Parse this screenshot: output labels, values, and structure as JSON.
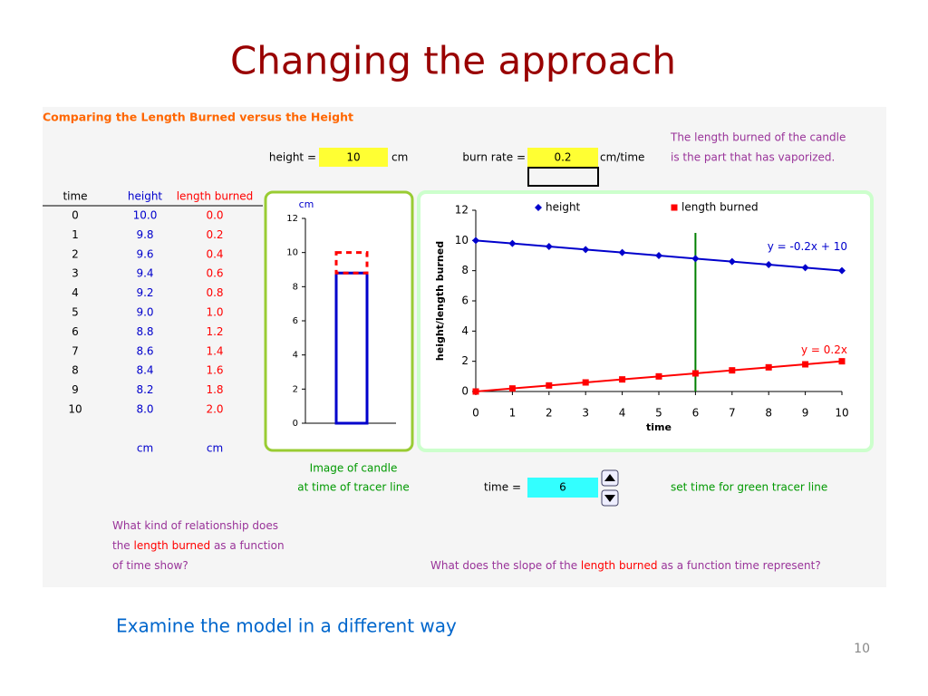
{
  "title": "Changing the approach",
  "sheet": {
    "heading": "Comparing the Length Burned versus the Height",
    "height_label": "height =",
    "height_value": 10,
    "height_unit": "cm",
    "burn_rate_label": "burn rate =",
    "burn_rate_value": 0.2,
    "burn_rate_unit": "cm/time",
    "note": [
      "The length burned of the candle",
      "is the part that has vaporized."
    ],
    "table": {
      "columns": [
        "time",
        "height",
        "length burned"
      ],
      "rows": [
        [
          0,
          "10.0",
          "0.0"
        ],
        [
          1,
          "9.8",
          "0.2"
        ],
        [
          2,
          "9.6",
          "0.4"
        ],
        [
          3,
          "9.4",
          "0.6"
        ],
        [
          4,
          "9.2",
          "0.8"
        ],
        [
          5,
          "9.0",
          "1.0"
        ],
        [
          6,
          "8.8",
          "1.2"
        ],
        [
          7,
          "8.6",
          "1.4"
        ],
        [
          8,
          "8.4",
          "1.6"
        ],
        [
          9,
          "8.2",
          "1.8"
        ],
        [
          10,
          "8.0",
          "2.0"
        ]
      ],
      "units": [
        "cm",
        "cm"
      ]
    },
    "candle_caption": [
      "Image of candle",
      "at time of tracer line"
    ],
    "time_label": "time =",
    "time_value": 6,
    "time_note": "set time for green tracer line",
    "question1": [
      [
        "What kind of relationship does"
      ],
      [
        "the ",
        "length burned",
        " as a function"
      ],
      [
        "of time show?"
      ]
    ],
    "question2": [
      [
        "What does the slope of the ",
        "length burned",
        " as a function time represent?"
      ]
    ]
  },
  "chart_data": [
    {
      "type": "bar",
      "y_label": "cm",
      "ylim": [
        0,
        12
      ],
      "yticks": [
        0,
        2,
        4,
        6,
        8,
        10,
        12
      ],
      "series": [
        {
          "color": "#0000cc",
          "values": [
            8.8
          ]
        },
        {
          "color": "#ff0000",
          "values": [
            1.2
          ]
        }
      ]
    },
    {
      "type": "line",
      "x_label": "time",
      "y_label": "height/length burned",
      "x": [
        0,
        1,
        2,
        3,
        4,
        5,
        6,
        7,
        8,
        9,
        10
      ],
      "xlim": [
        0,
        10
      ],
      "xticks": [
        0,
        1,
        2,
        3,
        4,
        5,
        6,
        7,
        8,
        9,
        10
      ],
      "ylim": [
        0,
        12
      ],
      "yticks": [
        0,
        2,
        4,
        6,
        8,
        10,
        12
      ],
      "legend": "top",
      "series": [
        {
          "name": "height",
          "color": "#0000cc",
          "marker": "diamond",
          "values": [
            10,
            9.8,
            9.6,
            9.4,
            9.2,
            9,
            8.8,
            8.6,
            8.4,
            8.2,
            8
          ]
        },
        {
          "name": "length burned",
          "color": "#ff0000",
          "marker": "square",
          "values": [
            0,
            0.2,
            0.4,
            0.6,
            0.8,
            1,
            1.2,
            1.4,
            1.6,
            1.8,
            2
          ]
        }
      ],
      "annotations": [
        "y = -0.2x + 10",
        "y = 0.2x"
      ],
      "tracer_color": "#008000"
    }
  ],
  "subtitle": "Examine the model in a different way",
  "page_number": 10
}
